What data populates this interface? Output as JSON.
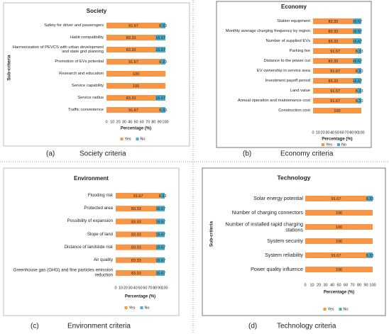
{
  "chart_data": [
    {
      "type": "bar",
      "orientation": "horizontal",
      "stacked": true,
      "title": "Society",
      "categories": [
        "Safety for driver and passengers",
        "Habit compatibility",
        "Harmonization of PEVCS with urban development and state grid planning",
        "Promotion of EVs potential",
        "Research and education",
        "Service capability",
        "Service radius",
        "Traffic convenience"
      ],
      "series": [
        {
          "name": "Yes",
          "color": "#f79646",
          "values": [
            91.67,
            83.33,
            83.33,
            91.67,
            100,
            100,
            83.33,
            91.67
          ]
        },
        {
          "name": "No",
          "color": "#4bacc6",
          "values": [
            8.33,
            16.67,
            16.67,
            8.33,
            null,
            null,
            16.67,
            8.33
          ]
        }
      ],
      "xlim": [
        0,
        100
      ],
      "xticks": [
        0,
        10,
        20,
        30,
        40,
        50,
        60,
        70,
        80,
        90,
        100
      ],
      "xlabel": "Percentage (%)",
      "ylabel": "Sub-criteria",
      "legend": "bottom",
      "caption_label": "(a)",
      "caption": "Society criteria"
    },
    {
      "type": "bar",
      "orientation": "horizontal",
      "stacked": true,
      "title": "Economy",
      "categories": [
        "Station equipment",
        "Monthly average charging frequency by region",
        "Number of supplied EVs",
        "Parking fee",
        "Distance to the power cut",
        "EV ownership in service area",
        "Investment payoff period",
        "Land value",
        "Annual operation and maintenance cost",
        "Construction cost"
      ],
      "series": [
        {
          "name": "Yes",
          "color": "#f79646",
          "values": [
            83.33,
            83.33,
            83.33,
            91.67,
            83.33,
            91.67,
            83.33,
            91.67,
            91.67,
            100
          ]
        },
        {
          "name": "No",
          "color": "#4bacc6",
          "values": [
            16.67,
            16.67,
            16.67,
            8.33,
            16.67,
            8.33,
            16.67,
            8.33,
            8.33,
            null
          ]
        }
      ],
      "xlim": [
        0,
        100
      ],
      "xticks": [
        0,
        10,
        20,
        30,
        40,
        50,
        60,
        70,
        80,
        90,
        100
      ],
      "xlabel": "Percentage (%)",
      "legend": "bottom",
      "caption_label": "(b)",
      "caption": "Economy criteria"
    },
    {
      "type": "bar",
      "orientation": "horizontal",
      "stacked": true,
      "title": "Environment",
      "categories": [
        "Flooding risk",
        "Protected area",
        "Possibility of expansion",
        "Slope of land",
        "Distance of landslide risk",
        "Air quality",
        "Greenhouse gas (GHG) and fine particles emission reduction"
      ],
      "series": [
        {
          "name": "Yes",
          "color": "#f79646",
          "values": [
            91.67,
            83.33,
            83.33,
            83.33,
            83.33,
            83.33,
            83.33
          ]
        },
        {
          "name": "No",
          "color": "#4bacc6",
          "values": [
            8.33,
            16.67,
            16.67,
            16.67,
            16.67,
            16.67,
            16.67
          ]
        }
      ],
      "xlim": [
        0,
        100
      ],
      "xticks": [
        0,
        10,
        20,
        30,
        40,
        50,
        60,
        70,
        80,
        90,
        100
      ],
      "xlabel": "Percentage (%)",
      "legend": "bottom",
      "caption_label": "(c)",
      "caption": "Environment criteria"
    },
    {
      "type": "bar",
      "orientation": "horizontal",
      "stacked": true,
      "title": "Technology",
      "categories": [
        "Solar energy potential",
        "Number of charging connectors",
        "Number of installed rapid charging stations",
        "System security",
        "System reliability",
        "Power quality influence"
      ],
      "series": [
        {
          "name": "Yes",
          "color": "#f79646",
          "values": [
            91.67,
            100,
            100,
            100,
            91.67,
            100
          ]
        },
        {
          "name": "No",
          "color": "#4bacc6",
          "values": [
            8.33,
            null,
            null,
            null,
            8.33,
            null
          ]
        }
      ],
      "xlim": [
        0,
        100
      ],
      "xticks": [
        0,
        10,
        20,
        30,
        40,
        50,
        60,
        70,
        80,
        90,
        100
      ],
      "xlabel": "Percentage (%)",
      "ylabel": "Sub-criteria",
      "legend": "bottom",
      "caption_label": "(d)",
      "caption": "Technology criteria"
    }
  ]
}
